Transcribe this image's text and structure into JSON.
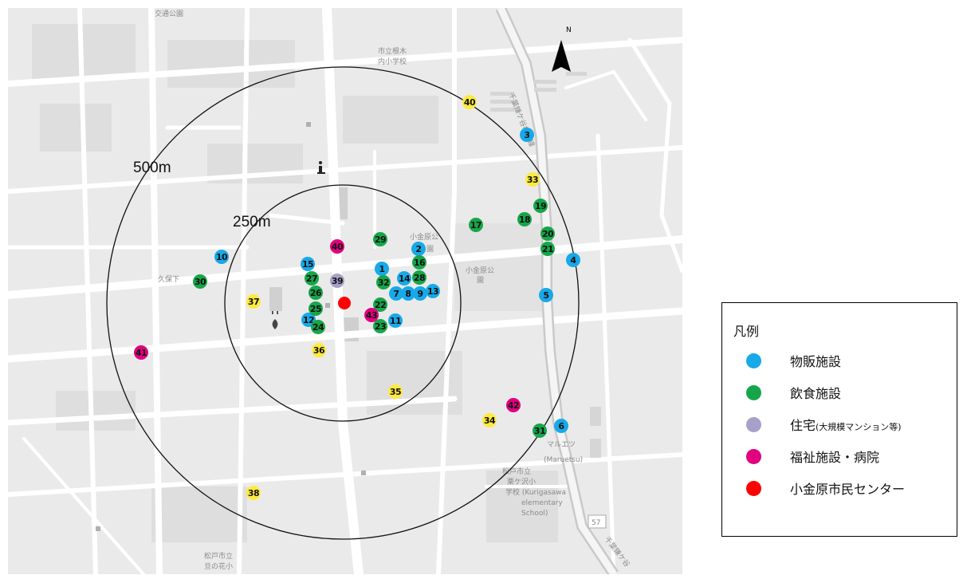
{
  "colors": {
    "retail": "#17a9e8",
    "dining": "#16a64a",
    "housing": "#a8a0c8",
    "welfare": "#e1007f",
    "center": "#ff0000",
    "yellow": "#ffea3d"
  },
  "compass": {
    "label": "N"
  },
  "rings": [
    {
      "label": "500m",
      "radius_m": 500
    },
    {
      "label": "250m",
      "radius_m": 250
    }
  ],
  "info_icon": "info-icon",
  "route_labels": [
    "千葉鎌ケ谷松戸線",
    "57",
    "千葉鎌ケ谷"
  ],
  "map_labels": [
    "交通公園",
    "市立根木",
    "内小学校",
    "久保下",
    "小金原公",
    "園",
    "小金原公",
    "園",
    "マルエツ",
    "(Maruetsu)",
    "松戸市立",
    "栗ケ沢小",
    "学校 (Kurigasawa",
    "elementary",
    "School)",
    "松戸市立",
    "旦の花小"
  ],
  "markers": [
    {
      "num": "1",
      "category": "retail"
    },
    {
      "num": "2",
      "category": "retail"
    },
    {
      "num": "3",
      "category": "retail"
    },
    {
      "num": "4",
      "category": "retail"
    },
    {
      "num": "5",
      "category": "retail"
    },
    {
      "num": "6",
      "category": "retail"
    },
    {
      "num": "7",
      "category": "retail"
    },
    {
      "num": "8",
      "category": "retail"
    },
    {
      "num": "9",
      "category": "retail"
    },
    {
      "num": "10",
      "category": "retail"
    },
    {
      "num": "11",
      "category": "retail"
    },
    {
      "num": "12",
      "category": "retail"
    },
    {
      "num": "13",
      "category": "retail"
    },
    {
      "num": "14",
      "category": "retail"
    },
    {
      "num": "15",
      "category": "retail"
    },
    {
      "num": "16",
      "category": "dining"
    },
    {
      "num": "17",
      "category": "dining"
    },
    {
      "num": "18",
      "category": "dining"
    },
    {
      "num": "19",
      "category": "dining"
    },
    {
      "num": "20",
      "category": "dining"
    },
    {
      "num": "21",
      "category": "dining"
    },
    {
      "num": "22",
      "category": "dining"
    },
    {
      "num": "23",
      "category": "dining"
    },
    {
      "num": "24",
      "category": "dining"
    },
    {
      "num": "25",
      "category": "dining"
    },
    {
      "num": "26",
      "category": "dining"
    },
    {
      "num": "27",
      "category": "dining"
    },
    {
      "num": "28",
      "category": "dining"
    },
    {
      "num": "29",
      "category": "dining"
    },
    {
      "num": "30",
      "category": "dining"
    },
    {
      "num": "31",
      "category": "dining"
    },
    {
      "num": "32",
      "category": "dining"
    },
    {
      "num": "33",
      "category": "yellow"
    },
    {
      "num": "34",
      "category": "yellow"
    },
    {
      "num": "35",
      "category": "yellow"
    },
    {
      "num": "36",
      "category": "yellow"
    },
    {
      "num": "37",
      "category": "yellow"
    },
    {
      "num": "38",
      "category": "yellow"
    },
    {
      "num": "39",
      "category": "housing"
    },
    {
      "num": "40",
      "category": "welfare"
    },
    {
      "num": "40",
      "category": "yellow"
    },
    {
      "num": "41",
      "category": "welfare"
    },
    {
      "num": "42",
      "category": "welfare"
    },
    {
      "num": "43",
      "category": "welfare"
    },
    {
      "num": "",
      "category": "center"
    }
  ],
  "legend": {
    "title": "凡例",
    "items": [
      {
        "label": "物販施設",
        "note": "",
        "color_key": "retail"
      },
      {
        "label": "飲食施設",
        "note": "",
        "color_key": "dining"
      },
      {
        "label": "住宅",
        "note": "(大規模マンション等)",
        "color_key": "housing"
      },
      {
        "label": "福祉施設・病院",
        "note": "",
        "color_key": "welfare"
      },
      {
        "label": "小金原市民センター",
        "note": "",
        "color_key": "center"
      }
    ]
  }
}
